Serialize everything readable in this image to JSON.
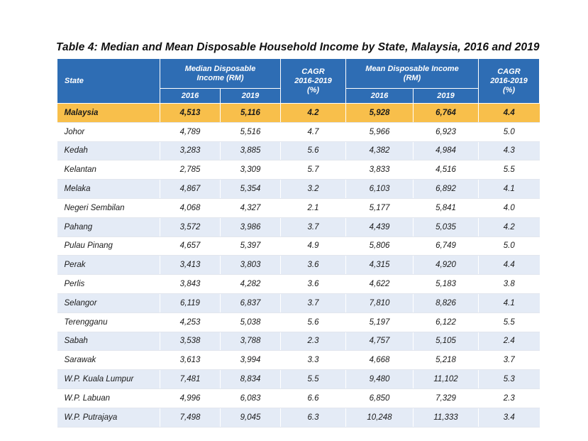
{
  "title": "Table 4: Median and Mean Disposable Household Income by State, Malaysia, 2016 and 2019",
  "header": {
    "state": "State",
    "median": "Median Disposable Income (RM)",
    "mean": "Mean Disposable Income (RM)",
    "cagr_title": "CAGR",
    "cagr_period": "2016-2019",
    "cagr_unit": "(%)",
    "y2016": "2016",
    "y2019": "2019"
  },
  "rows": [
    {
      "state": "Malaysia",
      "m2016": "4,513",
      "m2019": "5,116",
      "mcagr": "4.2",
      "a2016": "5,928",
      "a2019": "6,764",
      "acagr": "4.4"
    },
    {
      "state": "Johor",
      "m2016": "4,789",
      "m2019": "5,516",
      "mcagr": "4.7",
      "a2016": "5,966",
      "a2019": "6,923",
      "acagr": "5.0"
    },
    {
      "state": "Kedah",
      "m2016": "3,283",
      "m2019": "3,885",
      "mcagr": "5.6",
      "a2016": "4,382",
      "a2019": "4,984",
      "acagr": "4.3"
    },
    {
      "state": "Kelantan",
      "m2016": "2,785",
      "m2019": "3,309",
      "mcagr": "5.7",
      "a2016": "3,833",
      "a2019": "4,516",
      "acagr": "5.5"
    },
    {
      "state": "Melaka",
      "m2016": "4,867",
      "m2019": "5,354",
      "mcagr": "3.2",
      "a2016": "6,103",
      "a2019": "6,892",
      "acagr": "4.1"
    },
    {
      "state": "Negeri Sembilan",
      "m2016": "4,068",
      "m2019": "4,327",
      "mcagr": "2.1",
      "a2016": "5,177",
      "a2019": "5,841",
      "acagr": "4.0"
    },
    {
      "state": "Pahang",
      "m2016": "3,572",
      "m2019": "3,986",
      "mcagr": "3.7",
      "a2016": "4,439",
      "a2019": "5,035",
      "acagr": "4.2"
    },
    {
      "state": "Pulau Pinang",
      "m2016": "4,657",
      "m2019": "5,397",
      "mcagr": "4.9",
      "a2016": "5,806",
      "a2019": "6,749",
      "acagr": "5.0"
    },
    {
      "state": "Perak",
      "m2016": "3,413",
      "m2019": "3,803",
      "mcagr": "3.6",
      "a2016": "4,315",
      "a2019": "4,920",
      "acagr": "4.4"
    },
    {
      "state": "Perlis",
      "m2016": "3,843",
      "m2019": "4,282",
      "mcagr": "3.6",
      "a2016": "4,622",
      "a2019": "5,183",
      "acagr": "3.8"
    },
    {
      "state": "Selangor",
      "m2016": "6,119",
      "m2019": "6,837",
      "mcagr": "3.7",
      "a2016": "7,810",
      "a2019": "8,826",
      "acagr": "4.1"
    },
    {
      "state": "Terengganu",
      "m2016": "4,253",
      "m2019": "5,038",
      "mcagr": "5.6",
      "a2016": "5,197",
      "a2019": "6,122",
      "acagr": "5.5"
    },
    {
      "state": "Sabah",
      "m2016": "3,538",
      "m2019": "3,788",
      "mcagr": "2.3",
      "a2016": "4,757",
      "a2019": "5,105",
      "acagr": "2.4"
    },
    {
      "state": "Sarawak",
      "m2016": "3,613",
      "m2019": "3,994",
      "mcagr": "3.3",
      "a2016": "4,668",
      "a2019": "5,218",
      "acagr": "3.7"
    },
    {
      "state": "W.P. Kuala Lumpur",
      "m2016": "7,481",
      "m2019": "8,834",
      "mcagr": "5.5",
      "a2016": "9,480",
      "a2019": "11,102",
      "acagr": "5.3"
    },
    {
      "state": "W.P. Labuan",
      "m2016": "4,996",
      "m2019": "6,083",
      "mcagr": "6.6",
      "a2016": "6,850",
      "a2019": "7,329",
      "acagr": "2.3"
    },
    {
      "state": "W.P. Putrajaya",
      "m2016": "7,498",
      "m2019": "9,045",
      "mcagr": "6.3",
      "a2016": "10,248",
      "a2019": "11,333",
      "acagr": "3.4"
    }
  ],
  "colors": {
    "header_bg": "#2e6db4",
    "highlight_row": "#f8bf4b",
    "alt_row": "#e4ebf6"
  }
}
